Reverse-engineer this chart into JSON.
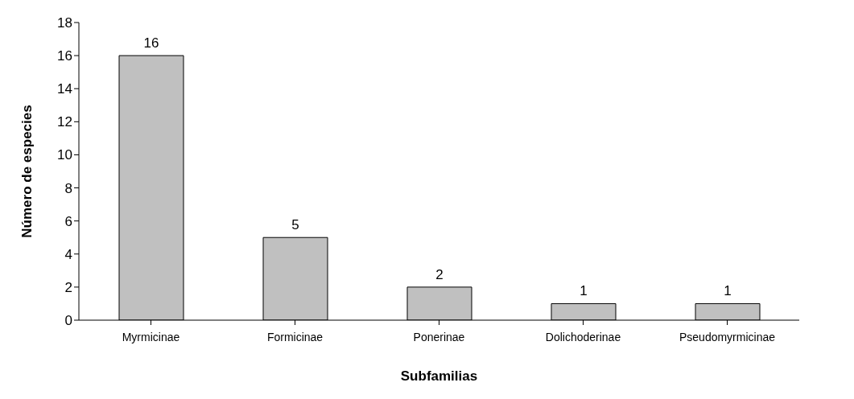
{
  "chart_data": {
    "type": "bar",
    "xlabel": "Subfamilias",
    "ylabel": "Número de especies",
    "categories": [
      "Myrmicinae",
      "Formicinae",
      "Ponerinae",
      "Dolichoderinae",
      "Pseudomyrmicinae"
    ],
    "values": [
      16,
      5,
      2,
      1,
      1
    ],
    "color": "#c0c0c0",
    "ylim": [
      0,
      18
    ],
    "yticks": [
      0,
      2,
      4,
      6,
      8,
      10,
      12,
      14,
      16,
      18
    ],
    "grid": false,
    "data_labels": true
  }
}
